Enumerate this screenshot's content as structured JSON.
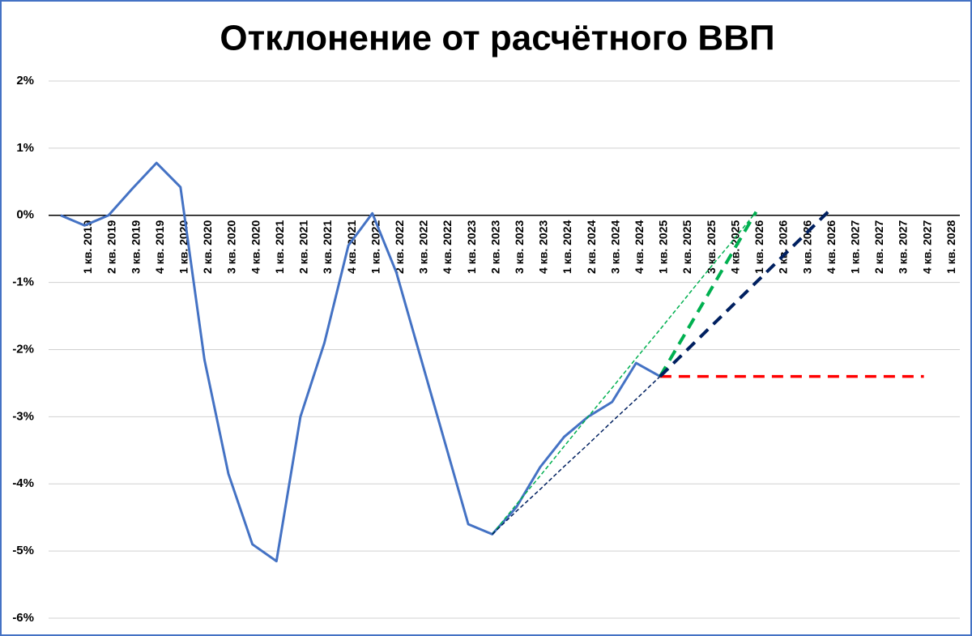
{
  "chart_data": {
    "type": "line",
    "title": "Отклонение от расчётного ВВП",
    "categories": [
      null,
      "1 кв. 2019",
      "2 кв. 2019",
      "3 кв. 2019",
      "4 кв. 2019",
      "1 кв. 2020",
      "2 кв. 2020",
      "3 кв. 2020",
      "4 кв. 2020",
      "1 кв. 2021",
      "2 кв. 2021",
      "3 кв. 2021",
      "4 кв. 2021",
      "1 кв. 2022",
      "2 кв. 2022",
      "3 кв. 2022",
      "4 кв. 2022",
      "1 кв. 2023",
      "2 кв. 2023",
      "3 кв. 2023",
      "4 кв. 2023",
      "1 кв. 2024",
      "2 кв. 2024",
      "3 кв. 2024",
      "4 кв. 2024",
      "1 кв. 2025",
      "2 кв. 2025",
      "3 кв. 2025",
      "4 кв. 2025",
      "1 кв. 2026",
      "2 кв. 2026",
      "3 кв. 2026",
      "4 кв. 2026",
      "1 кв. 2027",
      "2 кв. 2027",
      "3 кв. 2027",
      "4 кв. 2027",
      "1 кв. 2028"
    ],
    "series": [
      {
        "color": "#4472c4",
        "width": 3,
        "line_style": "solid",
        "values": [
          0,
          -0.15,
          0,
          0.4,
          0.78,
          0.42,
          -2.15,
          -3.85,
          -4.9,
          -5.15,
          -3.0,
          -1.9,
          -0.45,
          0.03,
          -0.85,
          -2.1,
          -3.35,
          -4.6,
          -4.75,
          -4.35,
          -3.75,
          -3.3,
          -3.0,
          -2.78,
          -2.2,
          -2.4,
          null,
          null,
          null,
          null,
          null,
          null,
          null,
          null,
          null,
          null,
          null,
          null
        ]
      },
      {
        "color": "#ff0000",
        "width": 3.5,
        "line_style": "dashed",
        "values": [
          null,
          null,
          null,
          null,
          null,
          null,
          null,
          null,
          null,
          null,
          null,
          null,
          null,
          null,
          null,
          null,
          null,
          null,
          null,
          null,
          null,
          null,
          null,
          null,
          null,
          -2.4,
          -2.4,
          -2.4,
          -2.4,
          -2.4,
          -2.4,
          -2.4,
          -2.4,
          -2.4,
          -2.4,
          -2.4,
          -2.4,
          null
        ]
      },
      {
        "color": "#00b050",
        "width": 1.5,
        "line_style": "dotted",
        "values": [
          null,
          null,
          null,
          null,
          null,
          null,
          null,
          null,
          null,
          null,
          null,
          null,
          null,
          null,
          null,
          null,
          null,
          null,
          -4.75,
          -4.31,
          -3.88,
          -3.44,
          -3.0,
          -2.57,
          -2.13,
          -1.7,
          -1.26,
          -0.82,
          -0.39,
          0.05,
          null,
          null,
          null,
          null,
          null,
          null,
          null,
          null
        ]
      },
      {
        "color": "#002060",
        "width": 1.5,
        "line_style": "dotted",
        "values": [
          null,
          null,
          null,
          null,
          null,
          null,
          null,
          null,
          null,
          null,
          null,
          null,
          null,
          null,
          null,
          null,
          null,
          null,
          -4.75,
          -4.41,
          -4.08,
          -3.74,
          -3.41,
          -3.07,
          -2.74,
          -2.4,
          null,
          null,
          null,
          null,
          null,
          null,
          null,
          null,
          null,
          null,
          null,
          null
        ]
      },
      {
        "color": "#00b050",
        "width": 4,
        "line_style": "dashed",
        "values": [
          null,
          null,
          null,
          null,
          null,
          null,
          null,
          null,
          null,
          null,
          null,
          null,
          null,
          null,
          null,
          null,
          null,
          null,
          null,
          null,
          null,
          null,
          null,
          null,
          null,
          -2.4,
          -1.79,
          -1.18,
          -0.56,
          0.05,
          null,
          null,
          null,
          null,
          null,
          null,
          null,
          null
        ]
      },
      {
        "color": "#002060",
        "width": 4,
        "line_style": "dashed",
        "values": [
          null,
          null,
          null,
          null,
          null,
          null,
          null,
          null,
          null,
          null,
          null,
          null,
          null,
          null,
          null,
          null,
          null,
          null,
          null,
          null,
          null,
          null,
          null,
          null,
          null,
          -2.4,
          -2.05,
          -1.7,
          -1.35,
          -1.0,
          -0.65,
          -0.3,
          0.05,
          null,
          null,
          null,
          null,
          null
        ]
      }
    ],
    "ylim": [
      -6,
      2
    ],
    "yticks": [
      {
        "value": -6,
        "label": "-6%"
      },
      {
        "value": -5,
        "label": "-5%"
      },
      {
        "value": -4,
        "label": "-4%"
      },
      {
        "value": -3,
        "label": "-3%"
      },
      {
        "value": -2,
        "label": "-2%"
      },
      {
        "value": -1,
        "label": "-1%"
      },
      {
        "value": 0,
        "label": "0%"
      },
      {
        "value": 1,
        "label": "1%"
      },
      {
        "value": 2,
        "label": "2%"
      }
    ],
    "grid": true
  }
}
